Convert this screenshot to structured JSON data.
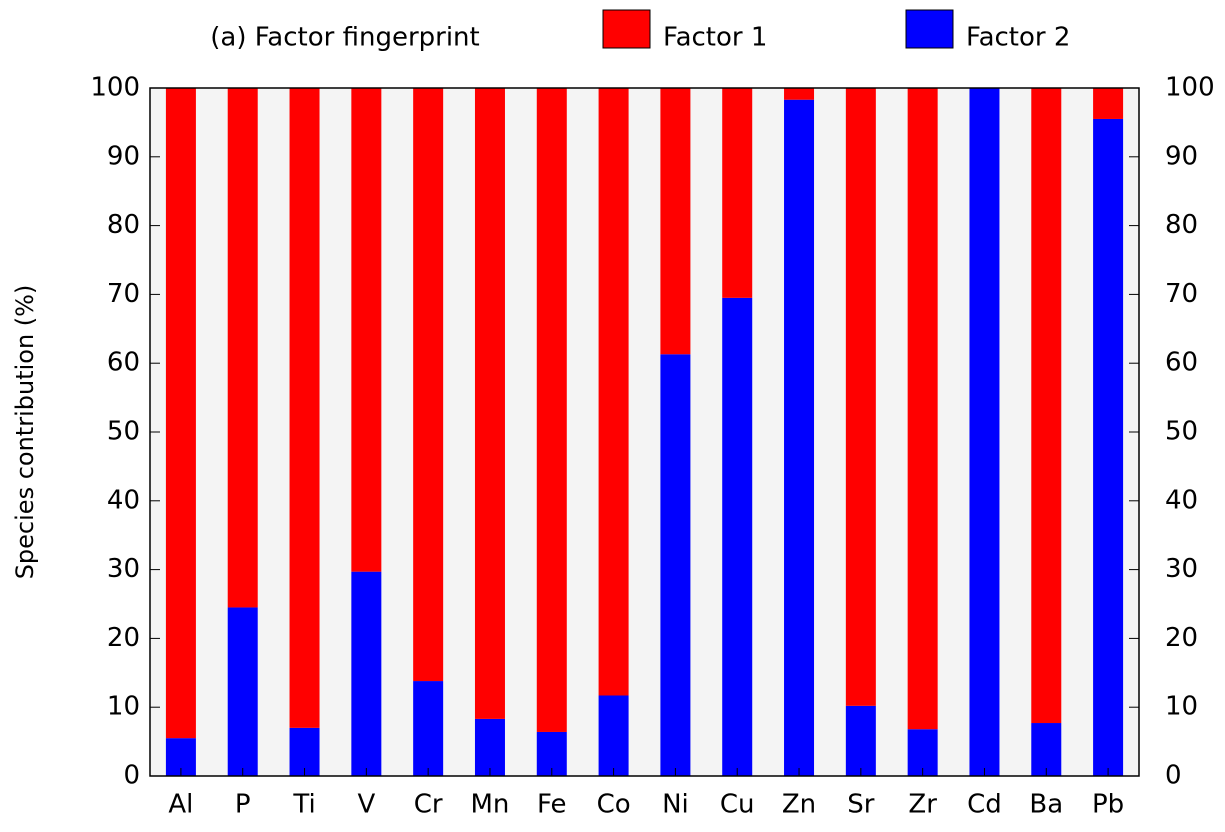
{
  "chart_data": {
    "type": "stacked_bar",
    "title": "(a) Factor fingerprint",
    "y_label": "Species contribution (%)",
    "categories": [
      "Al",
      "P",
      "Ti",
      "V",
      "Cr",
      "Mn",
      "Fe",
      "Co",
      "Ni",
      "Cu",
      "Zn",
      "Sr",
      "Zr",
      "Cd",
      "Ba",
      "Pb"
    ],
    "series": [
      {
        "name": "Factor 1",
        "color": "#ff0000",
        "values": [
          94.5,
          75.5,
          93,
          70.3,
          86.2,
          91.7,
          93.6,
          88.3,
          38.7,
          30.5,
          1.7,
          89.8,
          93.2,
          0,
          92.3,
          4.5
        ]
      },
      {
        "name": "Factor 2",
        "color": "#0000ff",
        "values": [
          5.5,
          24.5,
          7,
          29.7,
          13.8,
          8.3,
          6.4,
          11.7,
          61.3,
          69.5,
          98.3,
          10.2,
          6.8,
          100,
          7.7,
          95.5
        ]
      }
    ],
    "ylim": [
      0,
      100
    ],
    "yticks": [
      0,
      10,
      20,
      30,
      40,
      50,
      60,
      70,
      80,
      90,
      100
    ]
  }
}
